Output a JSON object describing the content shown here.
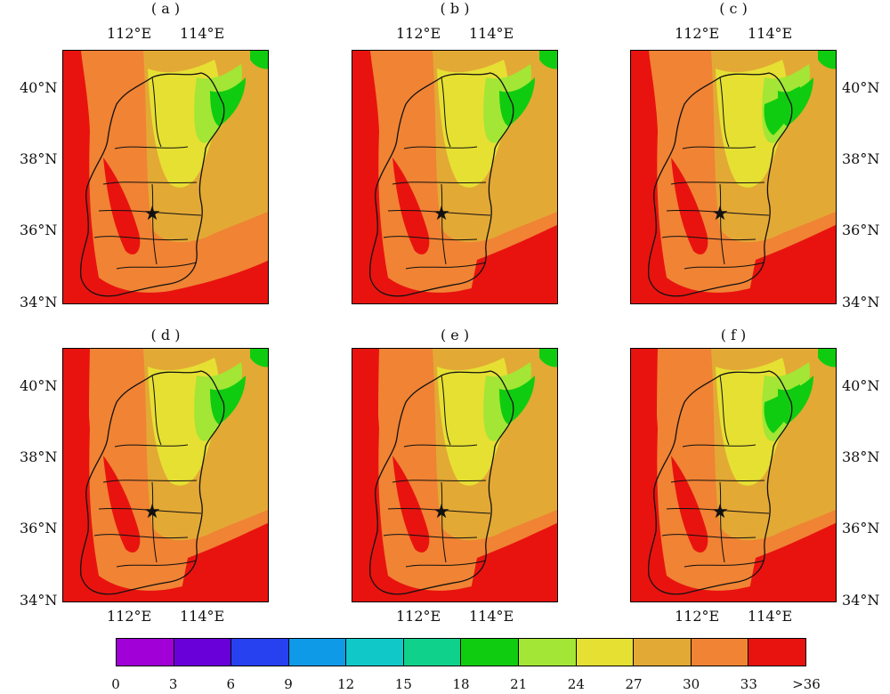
{
  "panels": [
    {
      "label": "( a )",
      "lon_top": [
        "112°E",
        "114°E"
      ],
      "lon_bottom": [],
      "lat_left": [
        "40°N",
        "38°N",
        "36°N",
        "34°N"
      ],
      "lat_right": []
    },
    {
      "label": "( b )",
      "lon_top": [
        "112°E",
        "114°E"
      ],
      "lon_bottom": [],
      "lat_left": [],
      "lat_right": []
    },
    {
      "label": "( c )",
      "lon_top": [
        "112°E",
        "114°E"
      ],
      "lon_bottom": [],
      "lat_left": [],
      "lat_right": [
        "40°N",
        "38°N",
        "36°N",
        "34°N"
      ]
    },
    {
      "label": "( d )",
      "lon_top": [],
      "lon_bottom": [
        "112°E",
        "114°E"
      ],
      "lat_left": [
        "40°N",
        "38°N",
        "36°N",
        "34°N"
      ],
      "lat_right": []
    },
    {
      "label": "( e )",
      "lon_top": [],
      "lon_bottom": [
        "112°E",
        "114°E"
      ],
      "lat_left": [],
      "lat_right": []
    },
    {
      "label": "( f )",
      "lon_top": [],
      "lon_bottom": [
        "112°E",
        "114°E"
      ],
      "lat_left": [],
      "lat_right": [
        "40°N",
        "38°N",
        "36°N",
        "34°N"
      ]
    }
  ],
  "marker": {
    "symbol": "★",
    "color": "#111111"
  },
  "colorbar": {
    "colors": [
      "#a100d6",
      "#6a00d9",
      "#2741f0",
      "#0f9ae8",
      "#10c8c8",
      "#10d18c",
      "#10cc10",
      "#a3e635",
      "#e6e033",
      "#e3a935",
      "#f08334",
      "#e8130f"
    ],
    "ticks": [
      "0",
      "3",
      "6",
      "9",
      "12",
      "15",
      "18",
      "21",
      "24",
      "27",
      "30",
      "33",
      ">36"
    ]
  },
  "field_colors": {
    "hot": "#e8130f",
    "warm": "#f08334",
    "mid": "#e3a935",
    "cool": "#e6e033",
    "cooler": "#a3e635",
    "cold": "#10cc10"
  }
}
